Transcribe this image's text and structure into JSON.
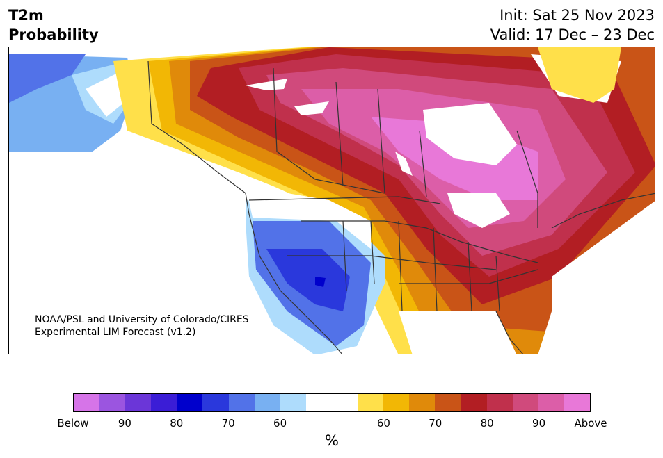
{
  "header": {
    "title_line1": "T2m",
    "title_line2": "Probability",
    "init": "Init: Sat 25 Nov 2023",
    "valid": "Valid: 17 Dec – 23 Dec"
  },
  "map": {
    "credit_line1": "NOAA/PSL and University of Colorado/CIRES",
    "credit_line2": "Experimental LIM Forecast (v1.2)"
  },
  "colorbar": {
    "colors": [
      "#d674e8",
      "#9b55e0",
      "#6b36d8",
      "#3b1dd6",
      "#0000cc",
      "#2a38dc",
      "#5272e8",
      "#78b0f2",
      "#aedcfc",
      "#ffffff",
      "#ffffff",
      "#ffe04a",
      "#f2b705",
      "#e08a0a",
      "#c95417",
      "#b21e23",
      "#c0304c",
      "#d04a7c",
      "#dc5ea8",
      "#e878d8"
    ],
    "ticks": [
      "Below",
      "90",
      "80",
      "70",
      "60",
      "60",
      "70",
      "80",
      "90",
      "Above"
    ],
    "unit": "%"
  },
  "legend_colors": {
    "cold_strong": "#2a38dc",
    "cold_light": "#aedcfc",
    "warm_yellow": "#ffe04a",
    "warm_red": "#b21e23",
    "warm_pink": "#e878d8",
    "border": "#333333"
  }
}
